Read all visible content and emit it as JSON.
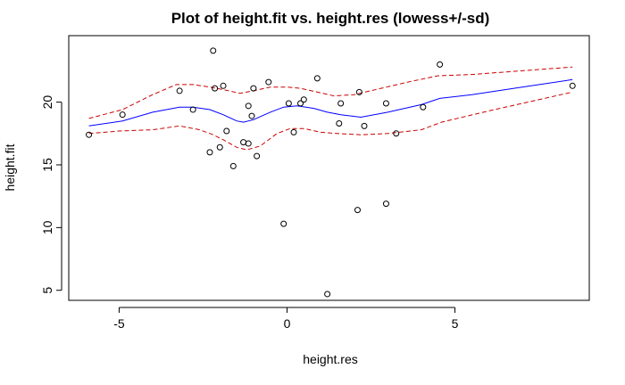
{
  "chart_data": {
    "type": "scatter",
    "title": "Plot of height.fit vs. height.res   (lowess+/-sd)",
    "xlabel": "height.res",
    "ylabel": "height.fit",
    "xlim": [
      -6.5,
      9.0
    ],
    "ylim": [
      4.2,
      25.3
    ],
    "x_ticks": [
      -5,
      0,
      5
    ],
    "y_ticks": [
      5,
      10,
      15,
      20
    ],
    "grid": false,
    "legend": "none",
    "points_color": "#000000",
    "series": [
      {
        "kind": "points",
        "points": [
          [
            -5.9,
            17.4
          ],
          [
            -4.9,
            19.0
          ],
          [
            -3.2,
            20.9
          ],
          [
            -2.8,
            19.4
          ],
          [
            -2.3,
            16.0
          ],
          [
            -2.2,
            24.1
          ],
          [
            -2.15,
            21.1
          ],
          [
            -2.0,
            16.4
          ],
          [
            -1.9,
            21.3
          ],
          [
            -1.8,
            17.7
          ],
          [
            -1.6,
            14.9
          ],
          [
            -1.3,
            16.8
          ],
          [
            -1.15,
            16.7
          ],
          [
            -1.15,
            19.7
          ],
          [
            -1.05,
            18.9
          ],
          [
            -1.0,
            21.1
          ],
          [
            -0.9,
            15.7
          ],
          [
            -0.55,
            21.6
          ],
          [
            -0.1,
            10.3
          ],
          [
            0.05,
            19.9
          ],
          [
            0.2,
            17.6
          ],
          [
            0.4,
            19.9
          ],
          [
            0.5,
            20.2
          ],
          [
            0.9,
            21.9
          ],
          [
            1.2,
            4.7
          ],
          [
            1.55,
            18.3
          ],
          [
            1.6,
            19.9
          ],
          [
            2.1,
            11.4
          ],
          [
            2.15,
            20.8
          ],
          [
            2.3,
            18.1
          ],
          [
            2.95,
            11.9
          ],
          [
            2.95,
            19.9
          ],
          [
            3.25,
            17.5
          ],
          [
            4.05,
            19.6
          ],
          [
            4.55,
            23.0
          ],
          [
            8.5,
            21.3
          ]
        ]
      },
      {
        "kind": "line",
        "style": "solid",
        "color": "#0000ff",
        "points": [
          [
            -5.9,
            18.1
          ],
          [
            -4.9,
            18.5
          ],
          [
            -4.0,
            19.2
          ],
          [
            -3.2,
            19.6
          ],
          [
            -2.8,
            19.6
          ],
          [
            -2.3,
            19.4
          ],
          [
            -1.9,
            19.0
          ],
          [
            -1.5,
            18.5
          ],
          [
            -1.3,
            18.4
          ],
          [
            -1.0,
            18.6
          ],
          [
            -0.5,
            19.2
          ],
          [
            -0.1,
            19.6
          ],
          [
            0.3,
            19.7
          ],
          [
            0.8,
            19.5
          ],
          [
            1.2,
            19.2
          ],
          [
            1.6,
            19.0
          ],
          [
            2.2,
            18.8
          ],
          [
            3.0,
            19.2
          ],
          [
            4.0,
            19.8
          ],
          [
            4.55,
            20.3
          ],
          [
            5.5,
            20.6
          ],
          [
            7.0,
            21.2
          ],
          [
            8.5,
            21.8
          ]
        ]
      },
      {
        "kind": "line",
        "style": "dashed",
        "color": "#cc0000",
        "points": [
          [
            -5.9,
            18.7
          ],
          [
            -4.9,
            19.4
          ],
          [
            -4.0,
            20.6
          ],
          [
            -3.3,
            21.4
          ],
          [
            -2.8,
            21.4
          ],
          [
            -2.3,
            21.2
          ],
          [
            -1.9,
            21.0
          ],
          [
            -1.4,
            20.7
          ],
          [
            -1.0,
            20.9
          ],
          [
            -0.5,
            21.2
          ],
          [
            0.0,
            21.2
          ],
          [
            0.4,
            21.1
          ],
          [
            0.9,
            20.8
          ],
          [
            1.4,
            20.5
          ],
          [
            2.0,
            20.6
          ],
          [
            2.8,
            21.1
          ],
          [
            3.6,
            21.6
          ],
          [
            4.5,
            22.1
          ],
          [
            5.5,
            22.2
          ],
          [
            7.0,
            22.5
          ],
          [
            8.5,
            22.8
          ]
        ]
      },
      {
        "kind": "line",
        "style": "dashed",
        "color": "#cc0000",
        "points": [
          [
            -5.9,
            17.5
          ],
          [
            -5.0,
            17.7
          ],
          [
            -4.0,
            17.8
          ],
          [
            -3.2,
            18.1
          ],
          [
            -2.6,
            17.8
          ],
          [
            -2.2,
            17.4
          ],
          [
            -1.9,
            17.0
          ],
          [
            -1.5,
            16.4
          ],
          [
            -1.2,
            16.2
          ],
          [
            -0.8,
            16.5
          ],
          [
            -0.3,
            17.5
          ],
          [
            0.1,
            17.9
          ],
          [
            0.5,
            17.9
          ],
          [
            1.0,
            17.6
          ],
          [
            1.5,
            17.5
          ],
          [
            2.2,
            17.4
          ],
          [
            3.0,
            17.5
          ],
          [
            4.0,
            17.8
          ],
          [
            4.6,
            18.4
          ],
          [
            6.0,
            19.3
          ],
          [
            7.5,
            20.2
          ],
          [
            8.5,
            20.8
          ]
        ]
      }
    ]
  }
}
